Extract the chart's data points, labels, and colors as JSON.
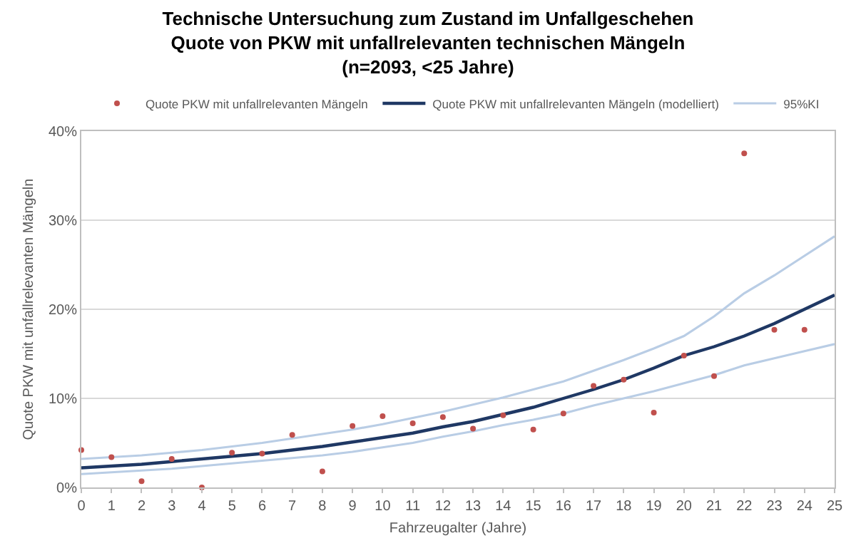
{
  "chart_data": {
    "type": "scatter",
    "title": "Technische Untersuchung zum Zustand im Unfallgeschehen\nQuote von PKW mit unfallrelevanten technischen Mängeln\n(n=2093, <25 Jahre)",
    "xlabel": "Fahrzeugalter (Jahre)",
    "ylabel": "Quote PKW mit unfallrelevanten Mängeln",
    "xlim": [
      0,
      25
    ],
    "xticks": [
      0,
      1,
      2,
      3,
      4,
      5,
      6,
      7,
      8,
      9,
      10,
      11,
      12,
      13,
      14,
      15,
      16,
      17,
      18,
      19,
      20,
      21,
      22,
      23,
      24,
      25
    ],
    "ylim": [
      0,
      40
    ],
    "yticks": [
      {
        "value": 0,
        "label": "0%"
      },
      {
        "value": 10,
        "label": "10%"
      },
      {
        "value": 20,
        "label": "20%"
      },
      {
        "value": 30,
        "label": "30%"
      },
      {
        "value": 40,
        "label": "40%"
      }
    ],
    "grid": "y",
    "legend": "top",
    "marker": "circle",
    "series": [
      {
        "name": "Quote PKW mit unfallrelevanten Mängeln",
        "color": "#c0504d",
        "x": [
          0,
          1,
          2,
          3,
          4,
          5,
          6,
          7,
          8,
          9,
          10,
          11,
          12,
          13,
          14,
          15,
          16,
          17,
          18,
          19,
          20,
          21,
          22,
          23,
          24
        ],
        "values": [
          4.2,
          3.4,
          0.7,
          3.2,
          0,
          3.9,
          3.8,
          5.9,
          1.8,
          6.9,
          8.0,
          7.2,
          7.9,
          6.6,
          8.1,
          6.5,
          8.3,
          11.4,
          12.1,
          8.4,
          14.8,
          12.5,
          37.5,
          17.7,
          17.7
        ]
      },
      {
        "name": "Quote PKW mit unfallrelevanten Mängeln (modelliert)",
        "type": "line",
        "color": "#1f3864",
        "marker": "none",
        "x": [
          0,
          1,
          2,
          3,
          4,
          5,
          6,
          7,
          8,
          9,
          10,
          11,
          12,
          13,
          14,
          15,
          16,
          17,
          18,
          19,
          20,
          21,
          22,
          23,
          24,
          25
        ],
        "values": [
          2.2,
          2.4,
          2.6,
          2.9,
          3.2,
          3.5,
          3.8,
          4.2,
          4.6,
          5.1,
          5.6,
          6.1,
          6.8,
          7.4,
          8.2,
          9.0,
          10.0,
          11.0,
          12.1,
          13.4,
          14.8,
          15.8,
          17.0,
          18.4,
          20.0,
          21.6
        ]
      },
      {
        "name": "95%KI",
        "type": "line",
        "color": "#b9cde5",
        "marker": "none",
        "x": [
          0,
          1,
          2,
          3,
          4,
          5,
          6,
          7,
          8,
          9,
          10,
          11,
          12,
          13,
          14,
          15,
          16,
          17,
          18,
          19,
          20,
          21,
          22,
          23,
          24,
          25
        ],
        "values": [
          3.2,
          3.4,
          3.6,
          3.9,
          4.2,
          4.6,
          5.0,
          5.5,
          6.0,
          6.5,
          7.1,
          7.8,
          8.5,
          9.3,
          10.1,
          11.0,
          11.9,
          13.1,
          14.3,
          15.6,
          17.0,
          19.2,
          21.8,
          23.8,
          26.0,
          28.2
        ]
      },
      {
        "type": "line",
        "color": "#b9cde5",
        "marker": "none",
        "x": [
          0,
          1,
          2,
          3,
          4,
          5,
          6,
          7,
          8,
          9,
          10,
          11,
          12,
          13,
          14,
          15,
          16,
          17,
          18,
          19,
          20,
          21,
          22,
          23,
          24,
          25
        ],
        "values": [
          1.5,
          1.7,
          1.9,
          2.1,
          2.4,
          2.7,
          3.0,
          3.3,
          3.6,
          4.0,
          4.5,
          5.0,
          5.7,
          6.3,
          7.0,
          7.6,
          8.3,
          9.2,
          10.0,
          10.8,
          11.7,
          12.6,
          13.7,
          14.5,
          15.3,
          16.1
        ]
      }
    ]
  }
}
